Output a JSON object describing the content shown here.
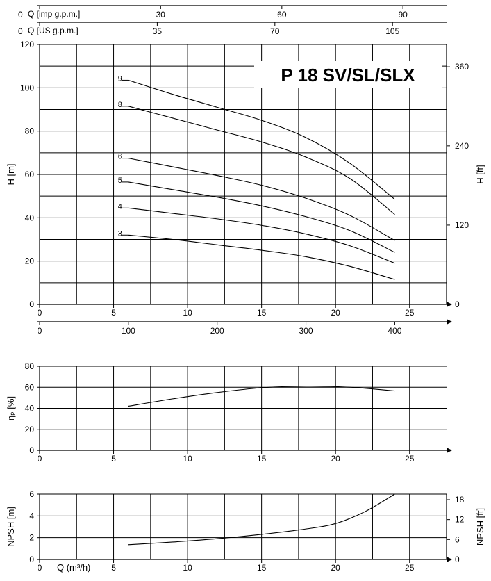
{
  "chart_data": [
    {
      "type": "line",
      "title": "P 18 SV/SL/SLX",
      "xlabel": "",
      "ylabel": "H [m]",
      "ylabel_right": "H [ft]",
      "xlim": [
        0,
        27.5
      ],
      "ylim": [
        0,
        120
      ],
      "x_ticks": [
        0,
        5,
        10,
        15,
        20,
        25
      ],
      "y_ticks": [
        0,
        20,
        40,
        60,
        80,
        100,
        120
      ],
      "y_right_ticks": [
        "0",
        "120",
        "240",
        "360"
      ],
      "y_right_tick_values_m": [
        0,
        36.6,
        73.2,
        109.7
      ],
      "x_lpm_ticks": [
        "0",
        "100",
        "200",
        "300",
        "400"
      ],
      "x_lpm_tick_values_m3h": [
        0,
        6,
        12,
        18,
        24
      ],
      "x_imp_label": "Q [imp g.p.m.]",
      "x_imp_ticks": [
        "0",
        "30",
        "60",
        "90"
      ],
      "x_imp_tick_values_m3h": [
        0,
        8.18,
        16.37,
        24.55
      ],
      "x_us_label": "Q [US g.p.m.]",
      "x_us_ticks": [
        "0",
        "35",
        "70",
        "105"
      ],
      "x_us_tick_values_m3h": [
        0,
        7.95,
        15.9,
        23.85
      ],
      "grid": true,
      "series": [
        {
          "name": "9",
          "x": [
            6,
            9,
            12,
            15,
            18,
            21,
            24
          ],
          "y": [
            103.5,
            97,
            91,
            85,
            77,
            65,
            48.5
          ]
        },
        {
          "name": "8",
          "x": [
            6,
            9,
            12,
            15,
            18,
            21,
            24
          ],
          "y": [
            91.5,
            86,
            80.5,
            75,
            68,
            58,
            41.5
          ]
        },
        {
          "name": "6",
          "x": [
            6,
            9,
            12,
            15,
            18,
            21,
            24
          ],
          "y": [
            67.5,
            63.5,
            59.5,
            55,
            49,
            41,
            29.5
          ]
        },
        {
          "name": "5",
          "x": [
            6,
            9,
            12,
            15,
            18,
            21,
            24
          ],
          "y": [
            56.5,
            53,
            49.5,
            45.5,
            40.5,
            34,
            24
          ]
        },
        {
          "name": "4",
          "x": [
            6,
            9,
            12,
            15,
            18,
            21,
            24
          ],
          "y": [
            44.5,
            42,
            39.5,
            36.5,
            32.5,
            27,
            19
          ]
        },
        {
          "name": "3",
          "x": [
            6,
            9,
            12,
            15,
            18,
            21,
            24
          ],
          "y": [
            32,
            30,
            27.5,
            25,
            22,
            17.5,
            11.5
          ]
        }
      ]
    },
    {
      "type": "line",
      "ylabel": "ηₚ [%]",
      "xlim": [
        0,
        27.5
      ],
      "ylim": [
        0,
        80
      ],
      "x_ticks": [
        0,
        5,
        10,
        15,
        20,
        25
      ],
      "y_ticks": [
        0,
        20,
        40,
        60,
        80
      ],
      "grid": true,
      "series": [
        {
          "x": [
            6,
            9,
            12,
            15,
            18,
            21,
            24
          ],
          "y": [
            42,
            49,
            55,
            59.5,
            61,
            60,
            56.5
          ]
        }
      ]
    },
    {
      "type": "line",
      "xlabel": "Q (m³/h)",
      "ylabel": "NPSH [m]",
      "ylabel_right": "NPSH [ft]",
      "xlim": [
        0,
        27.5
      ],
      "ylim": [
        0,
        6
      ],
      "x_ticks": [
        0,
        5,
        10,
        15,
        20,
        25
      ],
      "y_ticks": [
        0,
        2,
        4,
        6
      ],
      "y_right_ticks": [
        "0",
        "6",
        "12",
        "18"
      ],
      "y_right_tick_values_m": [
        0,
        1.83,
        3.66,
        5.49
      ],
      "grid": true,
      "series": [
        {
          "x": [
            6,
            9,
            12,
            15,
            18,
            20,
            22,
            24
          ],
          "y": [
            1.35,
            1.6,
            1.9,
            2.3,
            2.8,
            3.3,
            4.4,
            6
          ]
        }
      ]
    }
  ]
}
